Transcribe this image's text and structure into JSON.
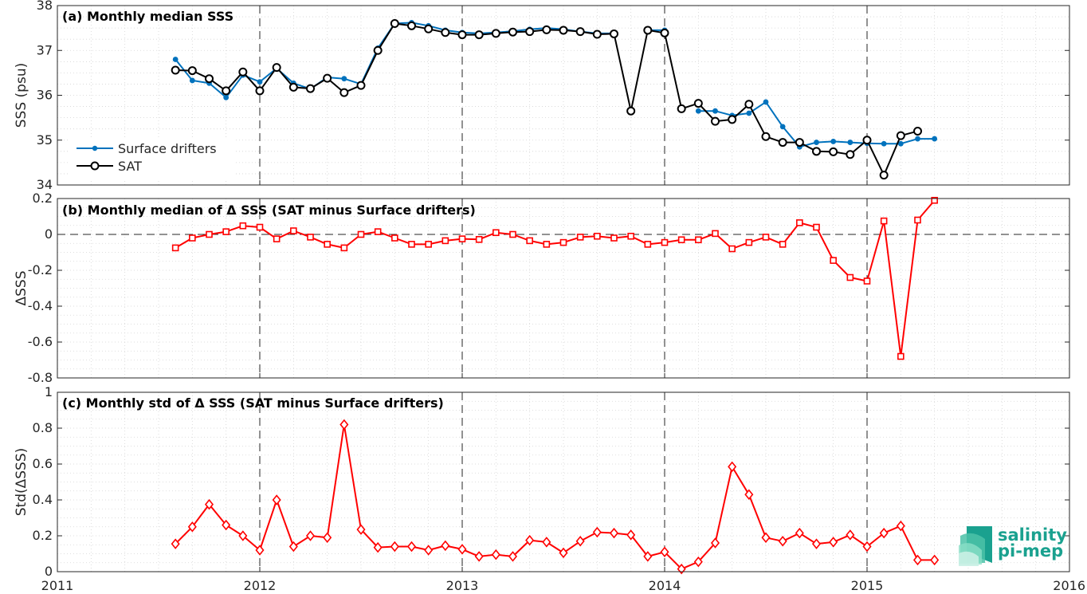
{
  "figure": {
    "logo": {
      "line1": "salinity",
      "line2": "pi-mep",
      "color": "#1aa18f"
    }
  },
  "chart_data": [
    {
      "id": "a",
      "type": "line",
      "title": "(a) Monthly median SSS",
      "ylabel": "SSS (psu)",
      "xlabel": "",
      "xlim": [
        "2011-01",
        "2016-01"
      ],
      "xticks": [
        "2011",
        "2012",
        "2013",
        "2014",
        "2015",
        "2016"
      ],
      "ylim": [
        34,
        38
      ],
      "yticks": [
        "34",
        "35",
        "36",
        "37",
        "38"
      ],
      "grid": "minor dotted, dashed vertical lines at year boundaries",
      "legend": {
        "position": "bottom-left",
        "entries": [
          "Surface drifters",
          "SAT"
        ]
      },
      "x": [
        "2011-08",
        "2011-09",
        "2011-10",
        "2011-11",
        "2011-12",
        "2012-01",
        "2012-02",
        "2012-03",
        "2012-04",
        "2012-05",
        "2012-06",
        "2012-07",
        "2012-08",
        "2012-09",
        "2012-10",
        "2012-11",
        "2012-12",
        "2013-01",
        "2013-02",
        "2013-03",
        "2013-04",
        "2013-05",
        "2013-06",
        "2013-07",
        "2013-08",
        "2013-09",
        "2013-10",
        "2013-11",
        "2013-12",
        "2014-01",
        "2014-02",
        "2014-03",
        "2014-04",
        "2014-05",
        "2014-06",
        "2014-07",
        "2014-08",
        "2014-09",
        "2014-10",
        "2014-11",
        "2014-12",
        "2015-01",
        "2015-02",
        "2015-03",
        "2015-04",
        "2015-05"
      ],
      "series": [
        {
          "name": "Surface drifters",
          "color": "#0072bd",
          "marker": "dot",
          "values": [
            36.8,
            36.33,
            36.27,
            35.95,
            36.45,
            36.3,
            36.6,
            36.27,
            36.14,
            36.4,
            36.37,
            36.25,
            37.05,
            37.6,
            37.62,
            37.55,
            37.45,
            37.4,
            37.38,
            37.4,
            37.43,
            37.47,
            37.5,
            37.47,
            37.42,
            37.38,
            37.38,
            null,
            37.45,
            37.45,
            null,
            35.65,
            35.65,
            35.55,
            35.6,
            35.85,
            35.3,
            34.85,
            34.95,
            34.97,
            34.95,
            34.93,
            34.92,
            34.92,
            35.03,
            35.03
          ]
        },
        {
          "name": "SAT",
          "color": "#000000",
          "marker": "circle",
          "values": [
            36.56,
            36.55,
            36.37,
            36.1,
            36.52,
            36.1,
            36.62,
            36.18,
            36.15,
            36.38,
            36.06,
            36.22,
            37.0,
            37.6,
            37.55,
            37.48,
            37.4,
            37.35,
            37.35,
            37.38,
            37.41,
            37.42,
            37.46,
            37.45,
            37.42,
            37.36,
            37.37,
            35.65,
            37.45,
            37.39,
            35.7,
            35.82,
            35.42,
            35.46,
            35.8,
            35.08,
            34.95,
            34.95,
            34.75,
            34.74,
            34.68,
            35.0,
            34.22,
            35.1,
            35.2,
            null
          ]
        }
      ]
    },
    {
      "id": "b",
      "type": "line",
      "title": "(b) Monthly median of Δ SSS (SAT minus Surface drifters)",
      "ylabel": "ΔSSS",
      "xlabel": "",
      "xlim": [
        "2011-01",
        "2016-01"
      ],
      "ylim": [
        -0.8,
        0.2
      ],
      "yticks": [
        "-0.8",
        "-0.6",
        "-0.4",
        "-0.2",
        "0",
        "0.2"
      ],
      "reference_line": 0,
      "x": [
        "2011-08",
        "2011-09",
        "2011-10",
        "2011-11",
        "2011-12",
        "2012-01",
        "2012-02",
        "2012-03",
        "2012-04",
        "2012-05",
        "2012-06",
        "2012-07",
        "2012-08",
        "2012-09",
        "2012-10",
        "2012-11",
        "2012-12",
        "2013-01",
        "2013-02",
        "2013-03",
        "2013-04",
        "2013-05",
        "2013-06",
        "2013-07",
        "2013-08",
        "2013-09",
        "2013-10",
        "2013-11",
        "2013-12",
        "2014-01",
        "2014-02",
        "2014-03",
        "2014-04",
        "2014-05",
        "2014-06",
        "2014-07",
        "2014-08",
        "2014-09",
        "2014-10",
        "2014-11",
        "2014-12",
        "2015-01",
        "2015-02",
        "2015-03",
        "2015-04",
        "2015-05"
      ],
      "series": [
        {
          "name": "",
          "color": "#ff0000",
          "marker": "square",
          "values": [
            -0.075,
            -0.02,
            0.0,
            0.015,
            0.048,
            0.04,
            -0.025,
            0.02,
            -0.015,
            -0.055,
            -0.075,
            0.0,
            0.015,
            -0.02,
            -0.055,
            -0.055,
            -0.035,
            -0.025,
            -0.028,
            0.01,
            0.0,
            -0.035,
            -0.055,
            -0.045,
            -0.015,
            -0.01,
            -0.02,
            -0.01,
            -0.055,
            -0.045,
            -0.03,
            -0.03,
            0.005,
            -0.08,
            -0.045,
            -0.015,
            -0.055,
            0.065,
            0.04,
            -0.145,
            -0.24,
            -0.26,
            0.075,
            -0.68,
            0.08,
            0.19
          ]
        }
      ]
    },
    {
      "id": "c",
      "type": "line",
      "title": "(c) Monthly std of Δ SSS (SAT minus Surface drifters)",
      "ylabel": "Std(ΔSSS)",
      "xlabel": "",
      "xlim": [
        "2011-01",
        "2016-01"
      ],
      "ylim": [
        0,
        1
      ],
      "yticks": [
        "0",
        "0.2",
        "0.4",
        "0.6",
        "0.8",
        "1"
      ],
      "x": [
        "2011-08",
        "2011-09",
        "2011-10",
        "2011-11",
        "2011-12",
        "2012-01",
        "2012-02",
        "2012-03",
        "2012-04",
        "2012-05",
        "2012-06",
        "2012-07",
        "2012-08",
        "2012-09",
        "2012-10",
        "2012-11",
        "2012-12",
        "2013-01",
        "2013-02",
        "2013-03",
        "2013-04",
        "2013-05",
        "2013-06",
        "2013-07",
        "2013-08",
        "2013-09",
        "2013-10",
        "2013-11",
        "2013-12",
        "2014-01",
        "2014-02",
        "2014-03",
        "2014-04",
        "2014-05",
        "2014-06",
        "2014-07",
        "2014-08",
        "2014-09",
        "2014-10",
        "2014-11",
        "2014-12",
        "2015-01",
        "2015-02",
        "2015-03",
        "2015-04",
        "2015-05"
      ],
      "series": [
        {
          "name": "",
          "color": "#ff0000",
          "marker": "diamond",
          "values": [
            0.155,
            0.25,
            0.375,
            0.26,
            0.2,
            0.12,
            0.4,
            0.14,
            0.2,
            0.19,
            0.82,
            0.235,
            0.135,
            0.14,
            0.14,
            0.12,
            0.145,
            0.125,
            0.085,
            0.095,
            0.085,
            0.175,
            0.165,
            0.105,
            0.17,
            0.22,
            0.215,
            0.205,
            0.085,
            0.11,
            0.015,
            0.055,
            0.16,
            0.585,
            0.43,
            0.19,
            0.17,
            0.215,
            0.155,
            0.165,
            0.205,
            0.14,
            0.215,
            0.255,
            0.065,
            0.065
          ]
        }
      ]
    }
  ]
}
